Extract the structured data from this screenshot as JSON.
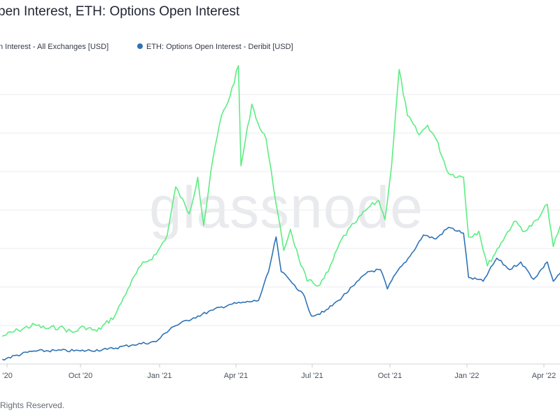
{
  "title": "pen Interest, ETH: Options Open Interest",
  "legend": [
    {
      "label": "n Interest - All Exchanges [USD]",
      "color": "#5ced82"
    },
    {
      "label": "ETH: Options Open Interest - Deribit [USD]",
      "color": "#2f73b6"
    }
  ],
  "watermark": "glassnode",
  "footer": "Rights Reserved.",
  "chart_data": {
    "type": "line",
    "title": "pen Interest, ETH: Options Open Interest",
    "x_ticks": [
      "l '20",
      "Oct '20",
      "Jan '21",
      "Apr '21",
      "Jul '21",
      "Oct '21",
      "Jan '22",
      "Apr '22"
    ],
    "grid": "horizontal",
    "legend_position": "top",
    "series": [
      {
        "name": "n Interest - All Exchanges [USD]",
        "color": "#5ced82",
        "points": [
          [
            "2020-06-25",
            0.72
          ],
          [
            "2020-07-15",
            0.88
          ],
          [
            "2020-08-05",
            1.02
          ],
          [
            "2020-08-18",
            0.92
          ],
          [
            "2020-09-05",
            0.96
          ],
          [
            "2020-09-22",
            0.82
          ],
          [
            "2020-10-05",
            0.97
          ],
          [
            "2020-10-20",
            0.85
          ],
          [
            "2020-11-10",
            1.25
          ],
          [
            "2020-11-25",
            1.95
          ],
          [
            "2020-12-10",
            2.55
          ],
          [
            "2020-12-28",
            2.85
          ],
          [
            "2021-01-10",
            3.35
          ],
          [
            "2021-01-20",
            4.6
          ],
          [
            "2021-02-05",
            3.9
          ],
          [
            "2021-02-15",
            4.85
          ],
          [
            "2021-02-22",
            3.6
          ],
          [
            "2021-03-05",
            5.35
          ],
          [
            "2021-03-15",
            6.45
          ],
          [
            "2021-03-25",
            6.95
          ],
          [
            "2021-04-04",
            7.75
          ],
          [
            "2021-04-07",
            5.15
          ],
          [
            "2021-04-20",
            6.75
          ],
          [
            "2021-04-30",
            6.1
          ],
          [
            "2021-05-07",
            5.85
          ],
          [
            "2021-05-13",
            5.05
          ],
          [
            "2021-05-19",
            4.15
          ],
          [
            "2021-05-28",
            2.95
          ],
          [
            "2021-06-05",
            3.5
          ],
          [
            "2021-06-15",
            2.75
          ],
          [
            "2021-06-25",
            2.15
          ],
          [
            "2021-07-10",
            2.05
          ],
          [
            "2021-07-20",
            2.4
          ],
          [
            "2021-08-05",
            3.25
          ],
          [
            "2021-08-20",
            3.65
          ],
          [
            "2021-09-05",
            4.05
          ],
          [
            "2021-09-18",
            4.25
          ],
          [
            "2021-09-25",
            3.75
          ],
          [
            "2021-10-03",
            5.15
          ],
          [
            "2021-10-12",
            7.65
          ],
          [
            "2021-10-22",
            6.45
          ],
          [
            "2021-11-05",
            5.95
          ],
          [
            "2021-11-15",
            6.2
          ],
          [
            "2021-11-25",
            5.85
          ],
          [
            "2021-12-10",
            4.95
          ],
          [
            "2021-12-28",
            4.85
          ],
          [
            "2022-01-03",
            3.3
          ],
          [
            "2022-01-15",
            3.45
          ],
          [
            "2022-01-25",
            2.55
          ],
          [
            "2022-02-10",
            3.15
          ],
          [
            "2022-02-25",
            3.7
          ],
          [
            "2022-03-10",
            3.45
          ],
          [
            "2022-03-25",
            3.75
          ],
          [
            "2022-04-05",
            4.15
          ],
          [
            "2022-04-12",
            3.05
          ],
          [
            "2022-04-25",
            3.85
          ],
          [
            "2022-05-05",
            3.6
          ]
        ]
      },
      {
        "name": "ETH: Options Open Interest - Deribit [USD]",
        "color": "#2f73b6",
        "points": [
          [
            "2020-06-25",
            0.12
          ],
          [
            "2020-08-01",
            0.33
          ],
          [
            "2020-09-01",
            0.35
          ],
          [
            "2020-10-01",
            0.34
          ],
          [
            "2020-11-01",
            0.38
          ],
          [
            "2020-12-01",
            0.5
          ],
          [
            "2020-12-28",
            0.58
          ],
          [
            "2021-01-15",
            0.95
          ],
          [
            "2021-02-10",
            1.2
          ],
          [
            "2021-03-05",
            1.4
          ],
          [
            "2021-03-25",
            1.55
          ],
          [
            "2021-04-12",
            1.6
          ],
          [
            "2021-04-28",
            1.65
          ],
          [
            "2021-05-10",
            2.4
          ],
          [
            "2021-05-19",
            3.3
          ],
          [
            "2021-05-25",
            2.4
          ],
          [
            "2021-06-10",
            2.05
          ],
          [
            "2021-06-22",
            1.75
          ],
          [
            "2021-06-30",
            1.25
          ],
          [
            "2021-07-15",
            1.35
          ],
          [
            "2021-08-01",
            1.65
          ],
          [
            "2021-08-20",
            2.05
          ],
          [
            "2021-09-05",
            2.4
          ],
          [
            "2021-09-20",
            2.45
          ],
          [
            "2021-09-28",
            1.95
          ],
          [
            "2021-10-08",
            2.35
          ],
          [
            "2021-10-25",
            2.8
          ],
          [
            "2021-11-10",
            3.35
          ],
          [
            "2021-11-25",
            3.25
          ],
          [
            "2021-12-10",
            3.55
          ],
          [
            "2021-12-28",
            3.4
          ],
          [
            "2022-01-03",
            2.25
          ],
          [
            "2022-01-20",
            2.15
          ],
          [
            "2022-02-05",
            2.75
          ],
          [
            "2022-02-20",
            2.45
          ],
          [
            "2022-03-05",
            2.65
          ],
          [
            "2022-03-20",
            2.2
          ],
          [
            "2022-04-05",
            2.65
          ],
          [
            "2022-04-12",
            2.15
          ],
          [
            "2022-04-25",
            2.5
          ],
          [
            "2022-05-05",
            2.4
          ]
        ]
      }
    ]
  }
}
